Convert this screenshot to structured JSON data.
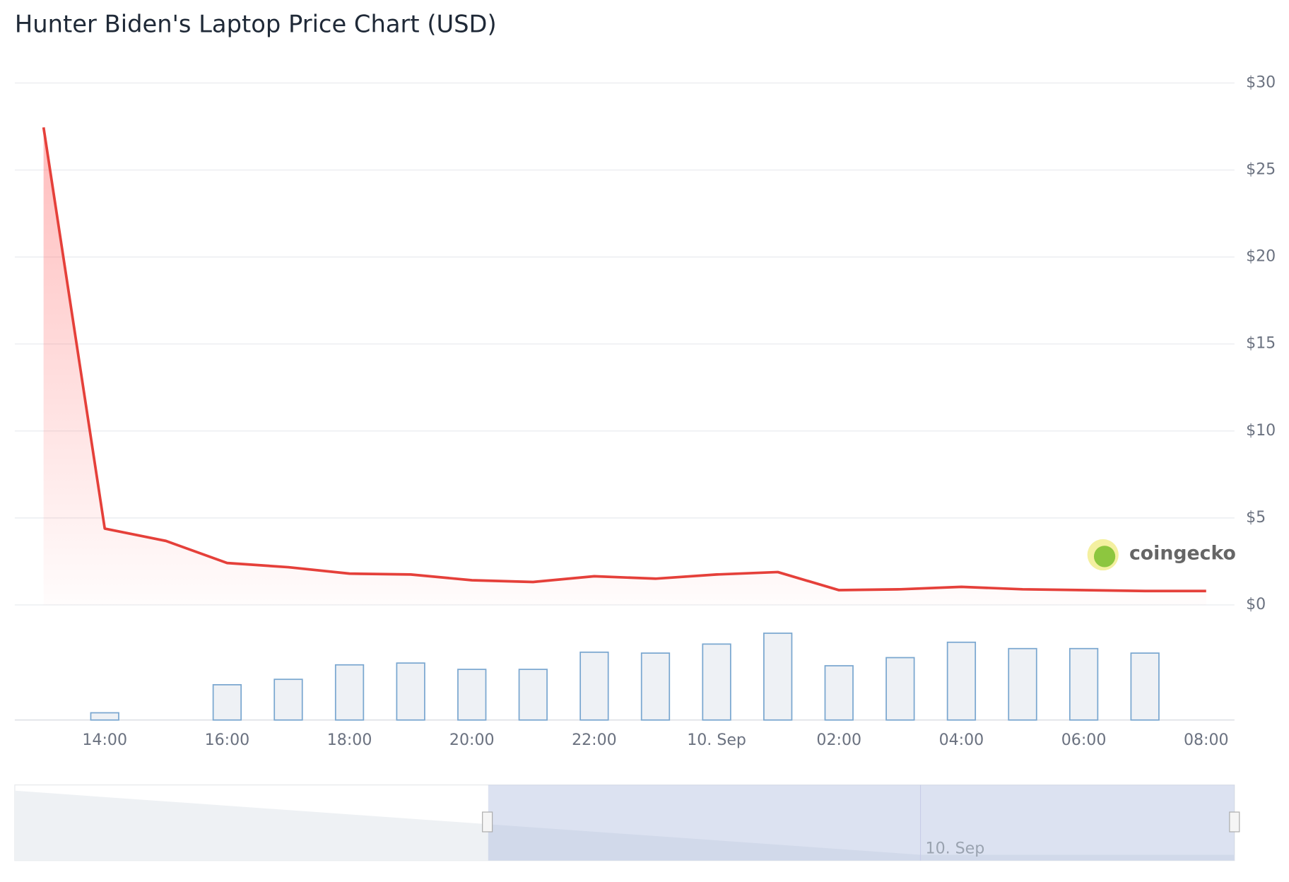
{
  "chart_data": {
    "type": "line",
    "title": "Hunter Biden's Laptop Price Chart (USD)",
    "categories": [
      null,
      "14:00",
      null,
      "16:00",
      null,
      "18:00",
      null,
      "20:00",
      null,
      "22:00",
      null,
      "10. Sep",
      null,
      "02:00",
      null,
      "04:00",
      null,
      "06:00",
      null,
      "08:00"
    ],
    "series": [
      {
        "color": "#e5403a",
        "values": [
          27.45,
          4.39,
          3.68,
          2.41,
          2.17,
          1.8,
          1.75,
          1.42,
          1.32,
          1.65,
          1.51,
          1.75,
          1.89,
          0.85,
          0.9,
          1.04,
          0.9,
          0.85,
          0.8,
          0.8
        ]
      }
    ],
    "volume": {
      "type": "bar",
      "color": "#eef1f5",
      "edge": "#7aa7d0",
      "ylim": [
        0,
        100
      ],
      "values": [
        null,
        8,
        null,
        39,
        45,
        61,
        63,
        56,
        56,
        75,
        74,
        84,
        96,
        60,
        69,
        86,
        79,
        79,
        74,
        null
      ]
    },
    "ylim": [
      0,
      30
    ],
    "yticks": [
      {
        "value": 0,
        "label": "$0"
      },
      {
        "value": 5,
        "label": "$5"
      },
      {
        "value": 10,
        "label": "$10"
      },
      {
        "value": 15,
        "label": "$15"
      },
      {
        "value": 20,
        "label": "$20"
      },
      {
        "value": 25,
        "label": "$25"
      },
      {
        "value": 30,
        "label": "$30"
      }
    ],
    "grid": true,
    "watermark": "coingecko",
    "navigator_label": "10. Sep"
  }
}
